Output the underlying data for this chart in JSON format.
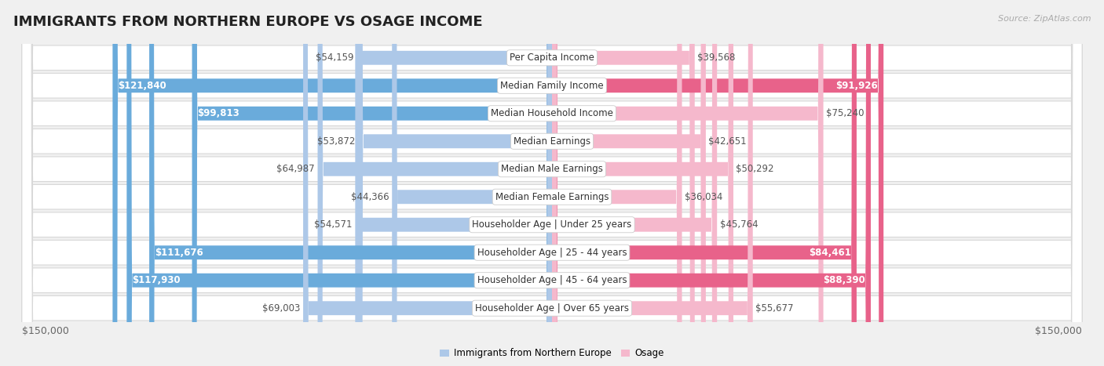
{
  "title": "IMMIGRANTS FROM NORTHERN EUROPE VS OSAGE INCOME",
  "source": "Source: ZipAtlas.com",
  "categories": [
    "Per Capita Income",
    "Median Family Income",
    "Median Household Income",
    "Median Earnings",
    "Median Male Earnings",
    "Median Female Earnings",
    "Householder Age | Under 25 years",
    "Householder Age | 25 - 44 years",
    "Householder Age | 45 - 64 years",
    "Householder Age | Over 65 years"
  ],
  "left_values": [
    54159,
    121840,
    99813,
    53872,
    64987,
    44366,
    54571,
    111676,
    117930,
    69003
  ],
  "right_values": [
    39568,
    91926,
    75240,
    42651,
    50292,
    36034,
    45764,
    84461,
    88390,
    55677
  ],
  "left_labels": [
    "$54,159",
    "$121,840",
    "$99,813",
    "$53,872",
    "$64,987",
    "$44,366",
    "$54,571",
    "$111,676",
    "$117,930",
    "$69,003"
  ],
  "right_labels": [
    "$39,568",
    "$91,926",
    "$75,240",
    "$42,651",
    "$50,292",
    "$36,034",
    "$45,764",
    "$84,461",
    "$88,390",
    "$55,677"
  ],
  "max_value": 150000,
  "left_color_light": "#adc8e8",
  "left_color_dark": "#6aabdb",
  "right_color_light": "#f5b8cc",
  "right_color_dark": "#e8628a",
  "label_color_inside": "#ffffff",
  "label_color_outside": "#555555",
  "background_color": "#f0f0f0",
  "row_bg_color": "#ffffff",
  "row_border_color": "#d8d8d8",
  "legend_left": "Immigrants from Northern Europe",
  "legend_right": "Osage",
  "title_fontsize": 13,
  "source_fontsize": 8,
  "axis_fontsize": 9,
  "label_fontsize": 8.5,
  "category_fontsize": 8.5,
  "inside_label_threshold": 0.55
}
